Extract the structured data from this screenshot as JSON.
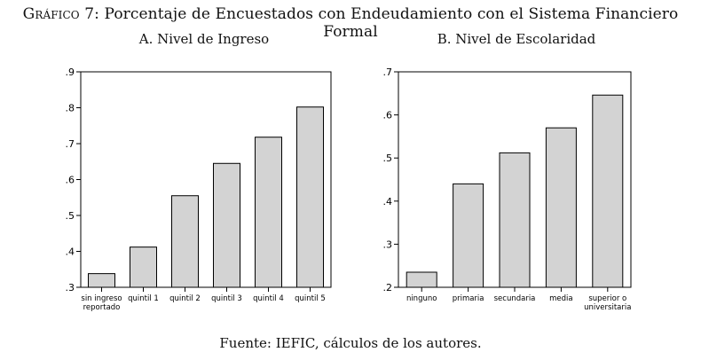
{
  "figure": {
    "title_lead": "Gráfico 7:",
    "title_rest": " Porcentaje de Encuestados con Endeudamiento con el Sistema Financiero Formal",
    "source": "Fuente: IEFIC, cálculos de los autores."
  },
  "chart_data": [
    {
      "type": "bar",
      "title": "A. Nivel de Ingreso",
      "xlabel": "",
      "ylabel": "",
      "categories": [
        [
          "sin ingreso",
          "reportado"
        ],
        [
          "quintil 1"
        ],
        [
          "quintil 2"
        ],
        [
          "quintil 3"
        ],
        [
          "quintil 4"
        ],
        [
          "quintil 5"
        ]
      ],
      "values": [
        0.338,
        0.412,
        0.555,
        0.645,
        0.718,
        0.802
      ],
      "ylim": [
        0.3,
        0.9
      ],
      "yticks": [
        0.3,
        0.4,
        0.5,
        0.6,
        0.7,
        0.8,
        0.9
      ],
      "ytick_labels": [
        ".3",
        ".4",
        ".5",
        ".6",
        ".7",
        ".8",
        ".9"
      ],
      "bar_color": "#d3d3d3",
      "grid": false
    },
    {
      "type": "bar",
      "title": "B. Nivel de Escolaridad",
      "xlabel": "",
      "ylabel": "",
      "categories": [
        [
          "ninguno"
        ],
        [
          "primaria"
        ],
        [
          "secundaria"
        ],
        [
          "media"
        ],
        [
          "superior o",
          "universitaria"
        ]
      ],
      "values": [
        0.235,
        0.44,
        0.512,
        0.57,
        0.646
      ],
      "ylim": [
        0.2,
        0.7
      ],
      "yticks": [
        0.2,
        0.3,
        0.4,
        0.5,
        0.6,
        0.7
      ],
      "ytick_labels": [
        ".2",
        ".3",
        ".4",
        ".5",
        ".6",
        ".7"
      ],
      "bar_color": "#d3d3d3",
      "grid": false
    }
  ]
}
